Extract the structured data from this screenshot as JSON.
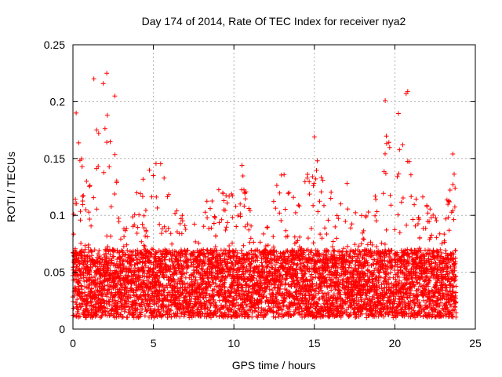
{
  "chart_data": {
    "type": "scatter",
    "title": "Day 174 of 2014, Rate Of TEC Index for receiver nya2",
    "xlabel": "GPS time / hours",
    "ylabel": "ROTI / TECUs",
    "xlim": [
      0,
      25
    ],
    "ylim": [
      0,
      0.25
    ],
    "x_ticks": [
      0,
      5,
      10,
      15,
      20,
      25
    ],
    "x_tick_labels": [
      "0",
      "5",
      "10",
      "15",
      "20",
      "25"
    ],
    "y_ticks": [
      0,
      0.05,
      0.1,
      0.15,
      0.2,
      0.25
    ],
    "y_tick_labels": [
      "0",
      "0.05",
      "0.1",
      "0.15",
      "0.2",
      "0.25"
    ],
    "grid": true,
    "marker": "+",
    "color": "#ff0000",
    "series": [
      {
        "name": "ROTI",
        "profile": {
          "x_start": 0.0,
          "x_end": 23.8,
          "x_step": 0.0125,
          "typical_range": [
            0.01,
            0.07
          ],
          "upper_envelope": [
            [
              0.0,
              0.1
            ],
            [
              0.3,
              0.18
            ],
            [
              1.0,
              0.13
            ],
            [
              1.5,
              0.21
            ],
            [
              2.0,
              0.22
            ],
            [
              2.5,
              0.18
            ],
            [
              3.0,
              0.11
            ],
            [
              3.5,
              0.08
            ],
            [
              4.0,
              0.13
            ],
            [
              5.5,
              0.15
            ],
            [
              6.0,
              0.12
            ],
            [
              7.0,
              0.1
            ],
            [
              8.0,
              0.09
            ],
            [
              8.5,
              0.13
            ],
            [
              9.5,
              0.12
            ],
            [
              10.5,
              0.14
            ],
            [
              11.5,
              0.08
            ],
            [
              12.0,
              0.09
            ],
            [
              13.0,
              0.15
            ],
            [
              14.0,
              0.11
            ],
            [
              15.0,
              0.16
            ],
            [
              16.0,
              0.12
            ],
            [
              17.0,
              0.13
            ],
            [
              18.0,
              0.11
            ],
            [
              19.0,
              0.12
            ],
            [
              19.5,
              0.18
            ],
            [
              20.5,
              0.2
            ],
            [
              21.0,
              0.14
            ],
            [
              22.0,
              0.11
            ],
            [
              23.0,
              0.1
            ],
            [
              23.8,
              0.15
            ]
          ],
          "notable_points": [
            [
              0.2,
              0.19
            ],
            [
              1.3,
              0.22
            ],
            [
              2.1,
              0.225
            ],
            [
              2.6,
              0.205
            ],
            [
              19.4,
              0.201
            ],
            [
              20.7,
              0.207
            ],
            [
              20.8,
              0.209
            ],
            [
              15.0,
              0.169
            ],
            [
              23.6,
              0.154
            ],
            [
              10.5,
              0.144
            ]
          ]
        }
      }
    ]
  }
}
